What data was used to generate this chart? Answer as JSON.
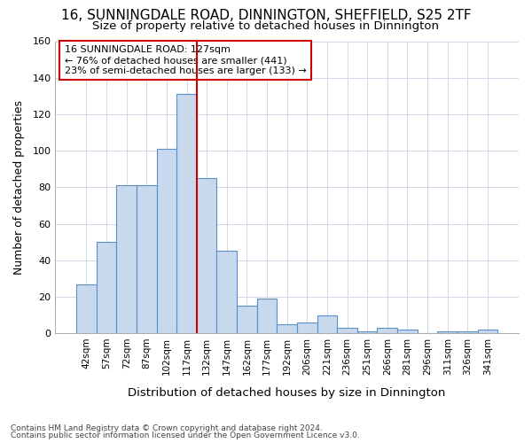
{
  "title": "16, SUNNINGDALE ROAD, DINNINGTON, SHEFFIELD, S25 2TF",
  "subtitle": "Size of property relative to detached houses in Dinnington",
  "xlabel": "Distribution of detached houses by size in Dinnington",
  "ylabel": "Number of detached properties",
  "categories": [
    "42sqm",
    "57sqm",
    "72sqm",
    "87sqm",
    "102sqm",
    "117sqm",
    "132sqm",
    "147sqm",
    "162sqm",
    "177sqm",
    "192sqm",
    "206sqm",
    "221sqm",
    "236sqm",
    "251sqm",
    "266sqm",
    "281sqm",
    "296sqm",
    "311sqm",
    "326sqm",
    "341sqm"
  ],
  "values": [
    27,
    50,
    81,
    81,
    101,
    131,
    85,
    45,
    15,
    19,
    5,
    6,
    10,
    3,
    1,
    3,
    2,
    0,
    1,
    1,
    2
  ],
  "bar_color": "#c8d9ee",
  "bar_edge_color": "#5a8fc8",
  "grid_color": "#d0d8e8",
  "vline_x": 6.0,
  "vline_color": "#cc0000",
  "annotation_title": "16 SUNNINGDALE ROAD: 127sqm",
  "annotation_line1": "← 76% of detached houses are smaller (441)",
  "annotation_line2": "23% of semi-detached houses are larger (133) →",
  "annotation_box_color": "#cc0000",
  "ylim": [
    0,
    160
  ],
  "yticks": [
    0,
    20,
    40,
    60,
    80,
    100,
    120,
    140,
    160
  ],
  "footer_line1": "Contains HM Land Registry data © Crown copyright and database right 2024.",
  "footer_line2": "Contains public sector information licensed under the Open Government Licence v3.0.",
  "background_color": "#ffffff",
  "plot_background": "#ffffff",
  "title_fontsize": 11,
  "subtitle_fontsize": 9.5
}
